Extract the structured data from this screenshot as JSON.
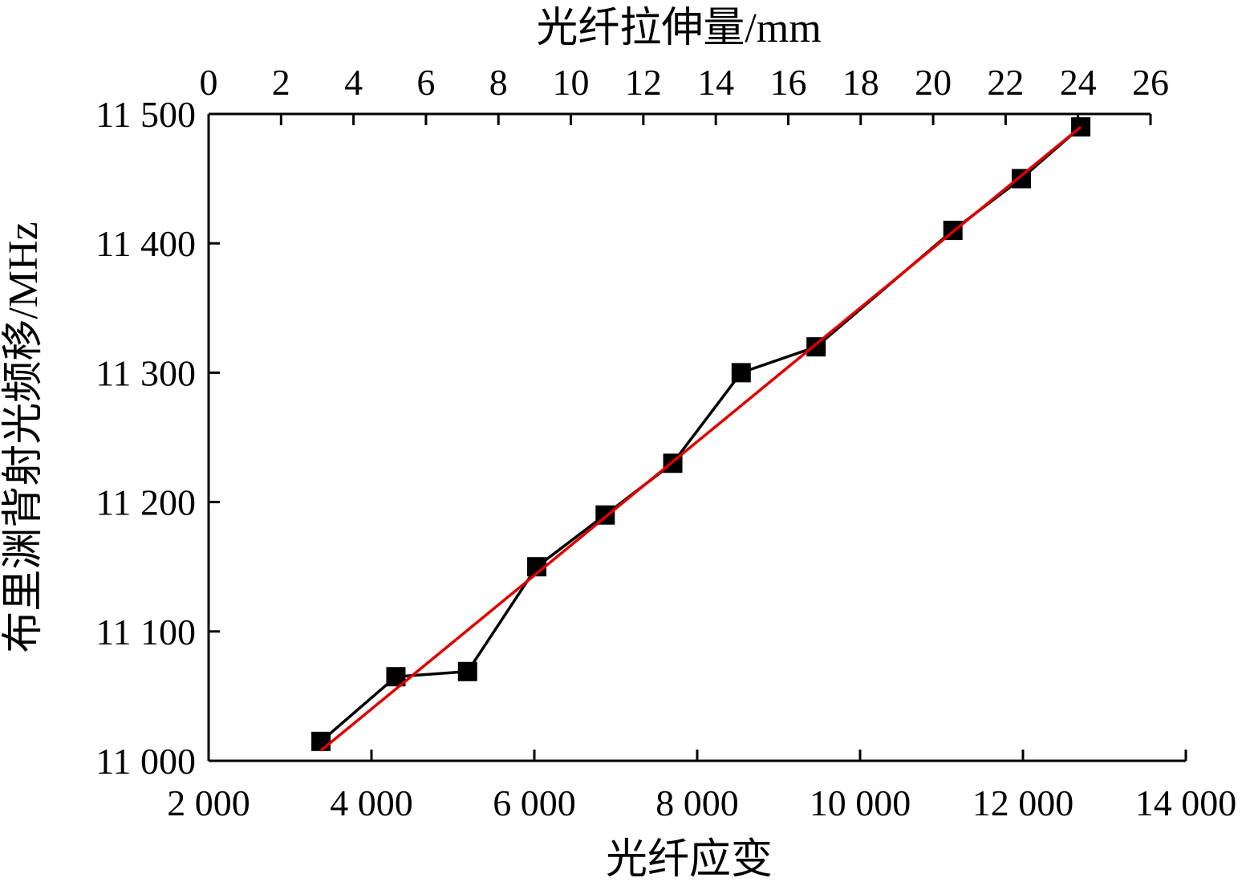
{
  "chart_data": {
    "type": "line",
    "xlabel_bottom": "光纤应变",
    "xlabel_top": "光纤拉伸量/mm",
    "ylabel": "布里渊背射光频移/MHz",
    "xlim_bottom": [
      2000,
      14000
    ],
    "xlim_top": [
      0,
      26
    ],
    "ylim": [
      11000,
      11500
    ],
    "x_ticks_bottom": [
      "2 000",
      "4 000",
      "6 000",
      "8 000",
      "10 000",
      "12 000",
      "14 000"
    ],
    "x_ticks_top": [
      "0",
      "2",
      "4",
      "6",
      "8",
      "10",
      "12",
      "14",
      "16",
      "18",
      "20",
      "22",
      "24",
      "26"
    ],
    "y_ticks": [
      "11 000",
      "11 100",
      "11 200",
      "11 300",
      "11 400",
      "11 500"
    ],
    "x_tick_values_bottom": [
      2000,
      4000,
      6000,
      8000,
      10000,
      12000,
      14000
    ],
    "x_tick_values_top": [
      0,
      2,
      4,
      6,
      8,
      10,
      12,
      14,
      16,
      18,
      20,
      22,
      24,
      26
    ],
    "y_tick_values": [
      11000,
      11100,
      11200,
      11300,
      11400,
      11500
    ],
    "grid": false,
    "series": [
      {
        "color": "#000000",
        "marker": "square",
        "x": [
          3380,
          4300,
          5180,
          6030,
          6870,
          7700,
          8540,
          9460,
          11140,
          11980,
          12710
        ],
        "y": [
          11015,
          11065,
          11069,
          11150,
          11190,
          11230,
          11300,
          11320,
          11410,
          11450,
          11490
        ]
      },
      {
        "color": "#e00000",
        "x": [
          3380,
          12710
        ],
        "y": [
          11008,
          11490
        ]
      }
    ]
  }
}
